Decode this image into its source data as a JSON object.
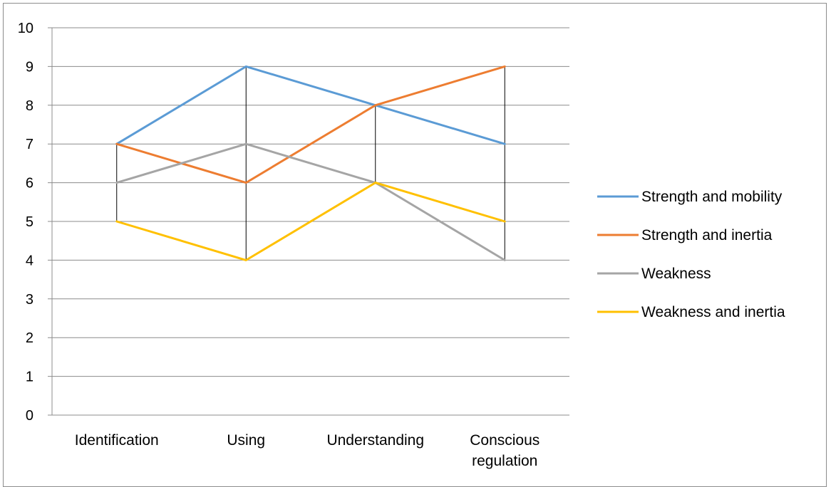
{
  "chart_data": {
    "type": "line",
    "categories": [
      "Identification",
      "Using",
      "Understanding",
      "Conscious regulation"
    ],
    "series": [
      {
        "name": "Strength and mobility",
        "values": [
          7,
          9,
          8,
          7
        ],
        "color": "#5b9bd5"
      },
      {
        "name": "Strength and inertia",
        "values": [
          7,
          6,
          8,
          9
        ],
        "color": "#ed7d31"
      },
      {
        "name": "Weakness",
        "values": [
          6,
          7,
          6,
          4
        ],
        "color": "#a5a5a5"
      },
      {
        "name": "Weakness and inertia",
        "values": [
          5,
          4,
          6,
          5
        ],
        "color": "#ffc000"
      }
    ],
    "ylim": [
      0,
      10
    ],
    "yticks": [
      0,
      1,
      2,
      3,
      4,
      5,
      6,
      7,
      8,
      9,
      10
    ],
    "grid": true,
    "high_low_lines": true,
    "legend_position": "right"
  }
}
